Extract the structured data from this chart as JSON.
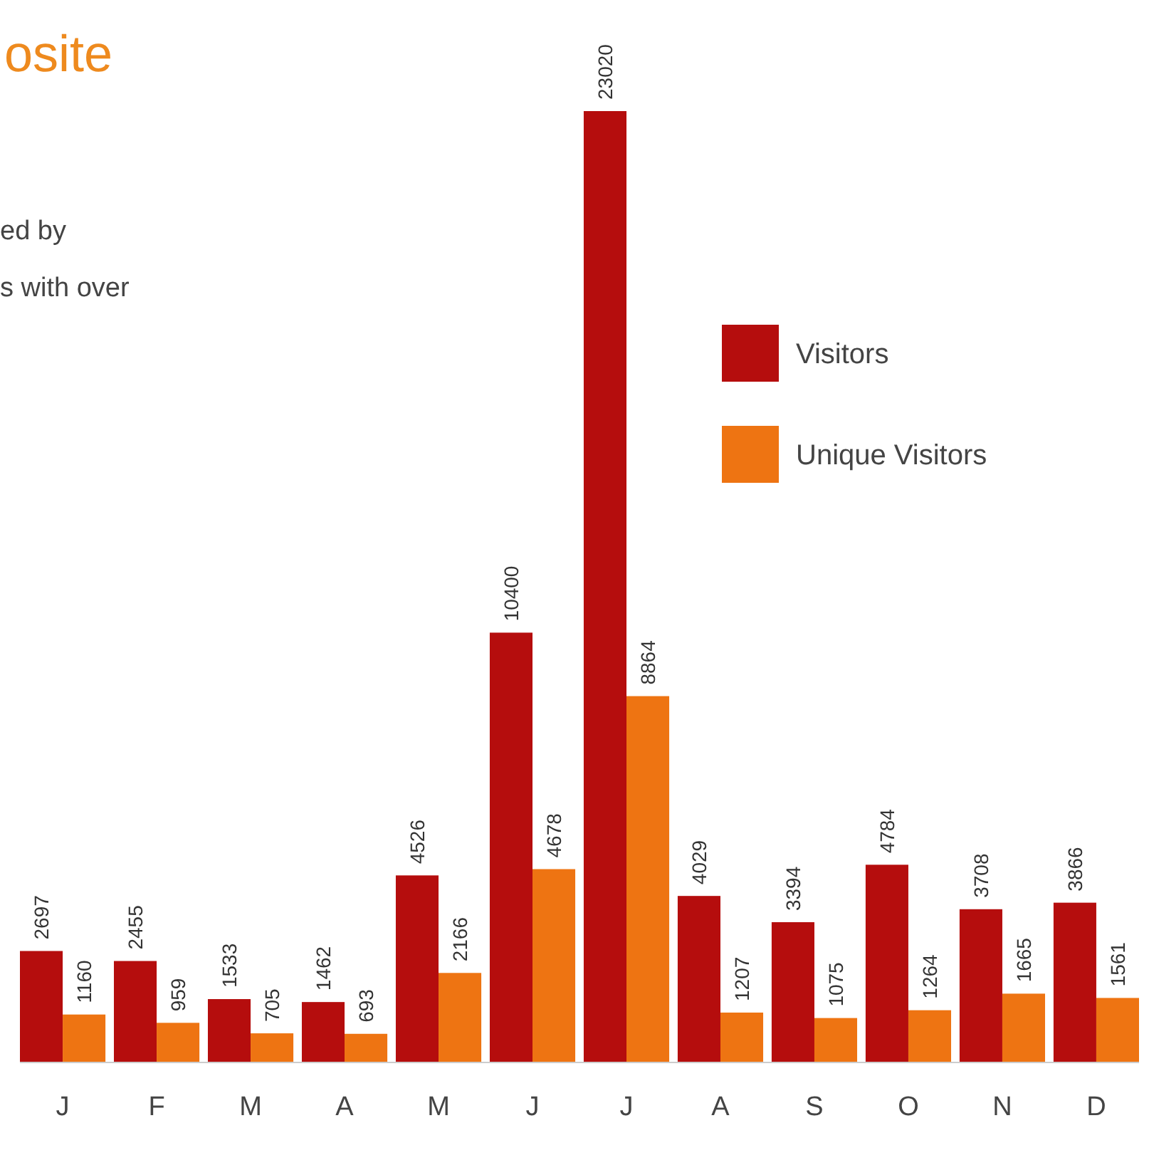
{
  "chart_data": {
    "type": "bar",
    "title": "osite",
    "annotations": [
      "ed by",
      "s with over"
    ],
    "categories": [
      "J",
      "F",
      "M",
      "A",
      "M",
      "J",
      "J",
      "A",
      "S",
      "O",
      "N",
      "D"
    ],
    "series": [
      {
        "name": "Visitors",
        "color": "#b50d0d",
        "values": [
          2697,
          2455,
          1533,
          1462,
          4526,
          10400,
          23020,
          4029,
          3394,
          4784,
          3708,
          3866
        ]
      },
      {
        "name": "Unique Visitors",
        "color": "#ee7412",
        "values": [
          1160,
          959,
          705,
          693,
          2166,
          4678,
          8864,
          1207,
          1075,
          1264,
          1665,
          1561
        ]
      }
    ],
    "data_labels": true,
    "legend": "top right"
  }
}
